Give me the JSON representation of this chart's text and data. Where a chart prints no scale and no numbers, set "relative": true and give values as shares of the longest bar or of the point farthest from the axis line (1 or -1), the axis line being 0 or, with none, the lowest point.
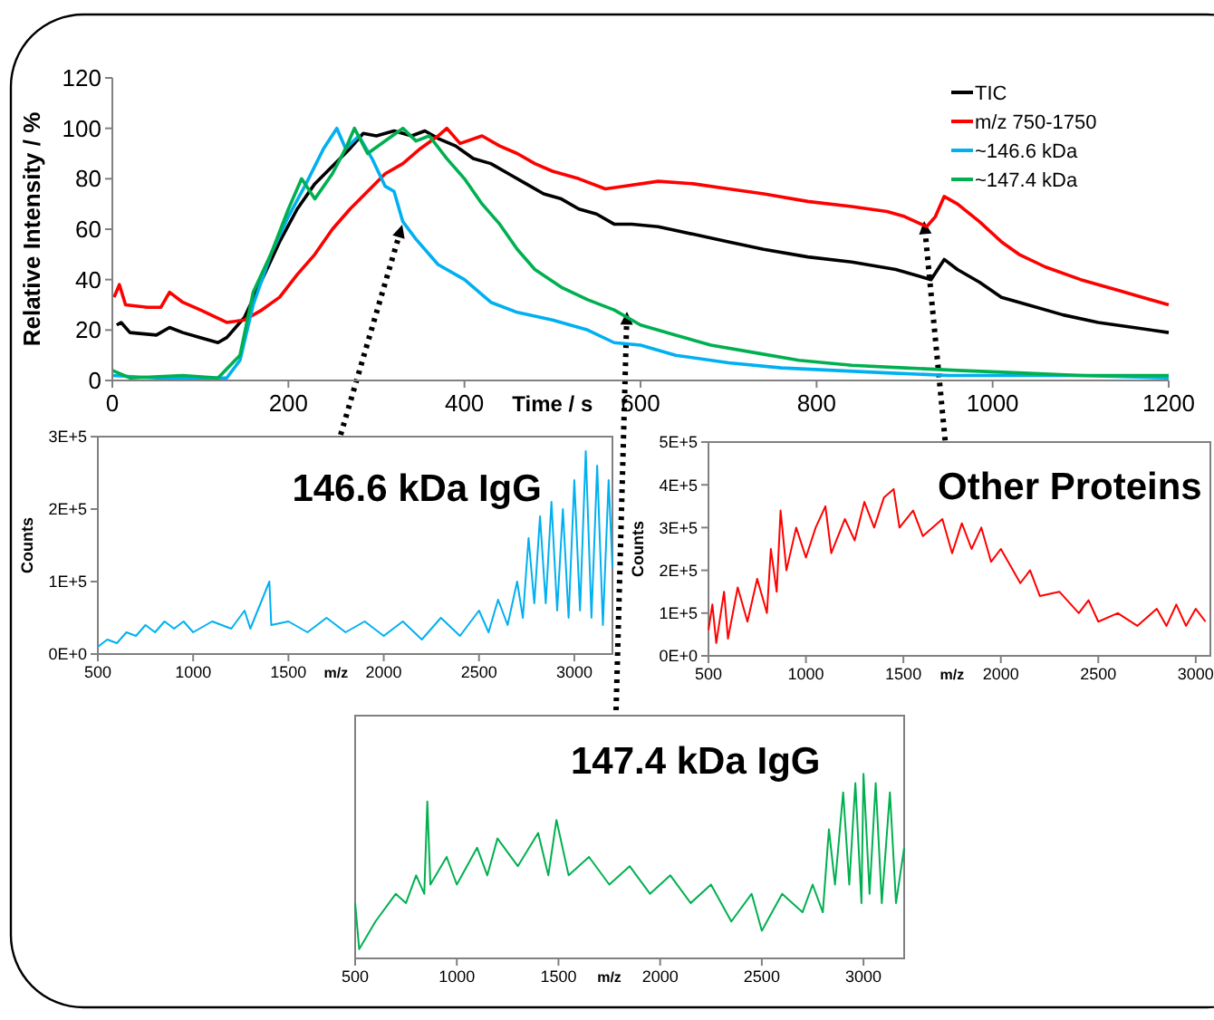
{
  "chart_data": [
    {
      "type": "line",
      "xlabel": "Time / s",
      "ylabel": "Relative Intensity / %",
      "xlim": [
        0,
        1200
      ],
      "ylim": [
        0,
        120
      ],
      "xticks": [
        0,
        200,
        400,
        600,
        800,
        1000,
        1200
      ],
      "yticks": [
        0,
        20,
        40,
        60,
        80,
        100,
        120
      ],
      "legend": "top right",
      "marker": "none",
      "line_style": "solid",
      "series": [
        {
          "name": "TIC",
          "color": "#000000",
          "x": [
            5,
            10,
            20,
            50,
            65,
            80,
            100,
            120,
            130,
            150,
            170,
            190,
            210,
            230,
            250,
            270,
            285,
            300,
            320,
            340,
            355,
            370,
            390,
            410,
            430,
            450,
            470,
            490,
            510,
            530,
            550,
            570,
            590,
            620,
            660,
            700,
            740,
            790,
            840,
            890,
            930,
            945,
            960,
            985,
            1010,
            1040,
            1080,
            1120,
            1160,
            1200
          ],
          "values": [
            22,
            23,
            19,
            18,
            21,
            19,
            17,
            15,
            17,
            25,
            40,
            55,
            68,
            78,
            85,
            92,
            98,
            97,
            99,
            97,
            99,
            96,
            93,
            88,
            86,
            82,
            78,
            74,
            72,
            68,
            66,
            62,
            62,
            61,
            58,
            55,
            52,
            49,
            47,
            44,
            40,
            48,
            44,
            39,
            33,
            30,
            26,
            23,
            21,
            19
          ]
        },
        {
          "name": "m/z 750-1750",
          "color": "#ff0000",
          "x": [
            2,
            8,
            15,
            40,
            55,
            65,
            80,
            100,
            130,
            150,
            170,
            190,
            210,
            230,
            250,
            270,
            290,
            310,
            330,
            350,
            370,
            380,
            395,
            420,
            440,
            460,
            480,
            500,
            530,
            560,
            580,
            620,
            660,
            700,
            740,
            790,
            840,
            880,
            900,
            925,
            935,
            945,
            960,
            985,
            1010,
            1030,
            1060,
            1100,
            1140,
            1180,
            1200
          ],
          "values": [
            33,
            38,
            30,
            29,
            29,
            35,
            31,
            28,
            23,
            24,
            28,
            33,
            42,
            50,
            60,
            68,
            75,
            82,
            86,
            92,
            97,
            100,
            94,
            97,
            93,
            90,
            86,
            83,
            80,
            76,
            77,
            79,
            78,
            76,
            74,
            71,
            69,
            67,
            65,
            61,
            65,
            73,
            70,
            63,
            55,
            50,
            45,
            40,
            36,
            32,
            30
          ]
        },
        {
          "name": "~146.6 kDa",
          "color": "#00b0f0",
          "x": [
            0,
            50,
            130,
            145,
            160,
            180,
            200,
            220,
            240,
            255,
            265,
            280,
            295,
            310,
            320,
            330,
            345,
            370,
            400,
            430,
            460,
            500,
            540,
            570,
            600,
            640,
            700,
            760,
            820,
            880,
            950,
            1100,
            1200
          ],
          "values": [
            2,
            1,
            1,
            8,
            30,
            50,
            65,
            78,
            92,
            100,
            92,
            97,
            88,
            77,
            75,
            63,
            56,
            46,
            40,
            31,
            27,
            24,
            20,
            15,
            14,
            10,
            7,
            5,
            4,
            3,
            2,
            2,
            1
          ]
        },
        {
          "name": "~147.4 kDa",
          "color": "#00b050",
          "x": [
            0,
            20,
            80,
            120,
            145,
            160,
            180,
            200,
            215,
            230,
            250,
            265,
            275,
            290,
            310,
            330,
            345,
            360,
            380,
            400,
            420,
            440,
            460,
            480,
            510,
            540,
            570,
            600,
            640,
            680,
            730,
            780,
            840,
            900,
            960,
            1030,
            1100,
            1200
          ],
          "values": [
            4,
            1,
            2,
            1,
            10,
            35,
            50,
            68,
            80,
            72,
            82,
            92,
            100,
            90,
            95,
            100,
            95,
            97,
            88,
            80,
            70,
            62,
            52,
            44,
            37,
            32,
            28,
            22,
            18,
            14,
            11,
            8,
            6,
            5,
            4,
            3,
            2,
            2
          ]
        }
      ]
    },
    {
      "type": "line",
      "title": "146.6 kDa IgG",
      "xlabel": "m/z",
      "ylabel": "Counts",
      "xlim": [
        500,
        3200
      ],
      "ylim": [
        0,
        300000
      ],
      "xticks": [
        500,
        1000,
        1500,
        2000,
        2500,
        3000
      ],
      "yticks": [
        {
          "value": 0,
          "label": "0E+0"
        },
        {
          "value": 100000,
          "label": "1E+5"
        },
        {
          "value": 200000,
          "label": "2E+5"
        },
        {
          "value": 300000,
          "label": "3E+5"
        }
      ],
      "series": [
        {
          "color": "#00b0f0",
          "x": [
            500,
            550,
            600,
            650,
            700,
            750,
            800,
            850,
            900,
            950,
            1000,
            1100,
            1200,
            1270,
            1300,
            1400,
            1410,
            1500,
            1600,
            1700,
            1800,
            1900,
            2000,
            2100,
            2200,
            2300,
            2400,
            2500,
            2550,
            2600,
            2650,
            2700,
            2730,
            2760,
            2790,
            2820,
            2850,
            2880,
            2910,
            2940,
            2970,
            3000,
            3030,
            3060,
            3090,
            3120,
            3150,
            3180,
            3200
          ],
          "values": [
            10000,
            20000,
            15000,
            30000,
            25000,
            40000,
            30000,
            45000,
            35000,
            45000,
            30000,
            45000,
            35000,
            60000,
            35000,
            100000,
            40000,
            45000,
            30000,
            50000,
            30000,
            45000,
            25000,
            45000,
            20000,
            50000,
            25000,
            60000,
            30000,
            75000,
            40000,
            100000,
            50000,
            160000,
            70000,
            190000,
            70000,
            210000,
            60000,
            200000,
            50000,
            240000,
            60000,
            280000,
            50000,
            260000,
            40000,
            240000,
            120000
          ]
        }
      ]
    },
    {
      "type": "line",
      "title": "Other Proteins",
      "xlabel": "m/z",
      "ylabel": "Counts",
      "xlim": [
        500,
        3075
      ],
      "ylim": [
        0,
        500000
      ],
      "xticks": [
        500,
        1000,
        1500,
        2000,
        2500,
        3000
      ],
      "yticks": [
        {
          "value": 0,
          "label": "0E+0"
        },
        {
          "value": 100000,
          "label": "1E+5"
        },
        {
          "value": 200000,
          "label": "2E+5"
        },
        {
          "value": 300000,
          "label": "3E+5"
        },
        {
          "value": 400000,
          "label": "4E+5"
        },
        {
          "value": 500000,
          "label": "5E+5"
        }
      ],
      "series": [
        {
          "color": "#ff0000",
          "x": [
            500,
            520,
            540,
            580,
            600,
            650,
            700,
            750,
            800,
            820,
            850,
            870,
            900,
            950,
            1000,
            1050,
            1100,
            1130,
            1200,
            1250,
            1300,
            1350,
            1400,
            1450,
            1480,
            1550,
            1600,
            1700,
            1750,
            1800,
            1850,
            1900,
            1950,
            2000,
            2100,
            2150,
            2200,
            2300,
            2400,
            2450,
            2500,
            2600,
            2700,
            2800,
            2850,
            2900,
            2950,
            3000,
            3050
          ],
          "values": [
            60000,
            120000,
            30000,
            150000,
            40000,
            160000,
            80000,
            180000,
            100000,
            250000,
            150000,
            340000,
            200000,
            300000,
            230000,
            300000,
            350000,
            240000,
            320000,
            270000,
            360000,
            300000,
            370000,
            390000,
            300000,
            340000,
            280000,
            320000,
            240000,
            310000,
            250000,
            300000,
            220000,
            250000,
            170000,
            200000,
            140000,
            150000,
            100000,
            130000,
            80000,
            100000,
            70000,
            110000,
            70000,
            120000,
            70000,
            110000,
            80000
          ]
        }
      ]
    },
    {
      "type": "line",
      "title": "147.4 kDa IgG",
      "xlabel": "m/z",
      "relative": true,
      "xlim": [
        500,
        3200
      ],
      "xticks": [
        500,
        1000,
        1500,
        2000,
        2500,
        3000
      ],
      "series": [
        {
          "color": "#00b050",
          "x": [
            500,
            520,
            600,
            700,
            750,
            800,
            840,
            855,
            870,
            950,
            1000,
            1100,
            1150,
            1200,
            1300,
            1400,
            1450,
            1490,
            1550,
            1650,
            1750,
            1850,
            1950,
            2050,
            2150,
            2250,
            2350,
            2450,
            2500,
            2600,
            2700,
            2750,
            2800,
            2830,
            2860,
            2900,
            2930,
            2960,
            2990,
            3000,
            3030,
            3060,
            3090,
            3130,
            3160,
            3200
          ],
          "values": [
            0.3,
            0.05,
            0.2,
            0.35,
            0.3,
            0.45,
            0.35,
            0.85,
            0.4,
            0.55,
            0.4,
            0.6,
            0.45,
            0.65,
            0.5,
            0.68,
            0.45,
            0.75,
            0.45,
            0.55,
            0.4,
            0.5,
            0.35,
            0.45,
            0.3,
            0.4,
            0.2,
            0.35,
            0.15,
            0.35,
            0.25,
            0.4,
            0.25,
            0.7,
            0.4,
            0.9,
            0.4,
            0.95,
            0.3,
            1.0,
            0.35,
            0.95,
            0.3,
            0.9,
            0.3,
            0.6
          ]
        }
      ]
    }
  ]
}
